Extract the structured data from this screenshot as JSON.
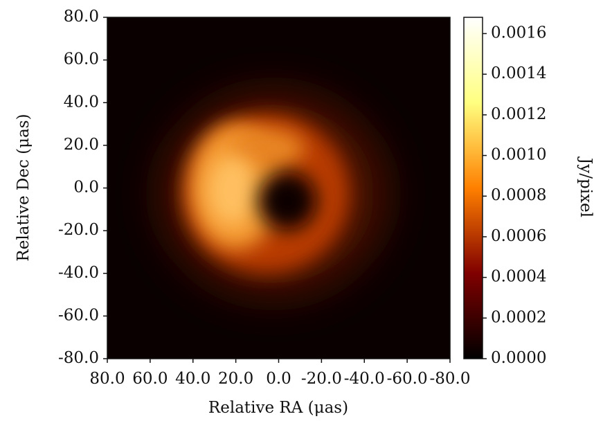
{
  "chart_data": {
    "type": "heatmap",
    "xlabel": "Relative RA (μas)",
    "ylabel": "Relative Dec (μas)",
    "xlim": [
      80,
      -80
    ],
    "ylim": [
      -80,
      80
    ],
    "xticks": [
      {
        "value": 80,
        "label": "80.0"
      },
      {
        "value": 60,
        "label": "60.0"
      },
      {
        "value": 40,
        "label": "40.0"
      },
      {
        "value": 20,
        "label": "20.0"
      },
      {
        "value": 0,
        "label": "0.0"
      },
      {
        "value": -20,
        "label": "-20.0"
      },
      {
        "value": -40,
        "label": "-40.0"
      },
      {
        "value": -60,
        "label": "-60.0"
      },
      {
        "value": -80,
        "label": "-80.0"
      }
    ],
    "yticks": [
      {
        "value": -80,
        "label": "-80.0"
      },
      {
        "value": -60,
        "label": "-60.0"
      },
      {
        "value": -40,
        "label": "-40.0"
      },
      {
        "value": -20,
        "label": "-20.0"
      },
      {
        "value": 0,
        "label": "0.0"
      },
      {
        "value": 20,
        "label": "20.0"
      },
      {
        "value": 40,
        "label": "40.0"
      },
      {
        "value": 60,
        "label": "60.0"
      },
      {
        "value": 80,
        "label": "80.0"
      }
    ],
    "colormap": "afmhot",
    "clim": [
      0,
      0.00168
    ],
    "colorbar_label": "Jy/pixel",
    "cticks": [
      {
        "value": 0,
        "label": "0.0000"
      },
      0.0002,
      0.0004,
      0.0006,
      0.0008,
      {
        "value": 0.001,
        "label": "0.0010"
      },
      0.0012,
      0.0014,
      0.0016
    ]
  }
}
